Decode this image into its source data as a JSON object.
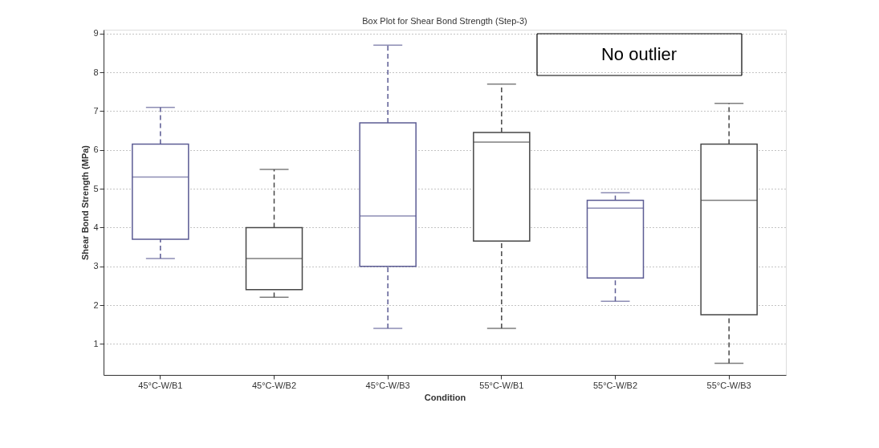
{
  "chart_data": {
    "type": "box",
    "title": "Box Plot for Shear Bond Strength (Step-3)",
    "xlabel": "Condition",
    "ylabel": "Shear Bond Strength (MPa)",
    "categories": [
      "45°C-W/B1",
      "45°C-W/B2",
      "45°C-W/B3",
      "55°C-W/B1",
      "55°C-W/B2",
      "55°C-W/B3"
    ],
    "colors": [
      "#5c5c94",
      "#474747",
      "#5c5c94",
      "#474747",
      "#5c5c94",
      "#474747"
    ],
    "boxes": [
      {
        "low": 3.2,
        "q1": 3.7,
        "median": 5.3,
        "q3": 6.15,
        "high": 7.1
      },
      {
        "low": 2.2,
        "q1": 2.4,
        "median": 3.2,
        "q3": 4.0,
        "high": 5.5
      },
      {
        "low": 1.4,
        "q1": 3.0,
        "median": 4.3,
        "q3": 6.7,
        "high": 8.7
      },
      {
        "low": 1.4,
        "q1": 3.65,
        "median": 6.2,
        "q3": 6.45,
        "high": 7.7
      },
      {
        "low": 2.1,
        "q1": 2.7,
        "median": 4.5,
        "q3": 4.7,
        "high": 4.9
      },
      {
        "low": 0.5,
        "q1": 1.75,
        "median": 4.7,
        "q3": 6.15,
        "high": 7.2
      }
    ],
    "ylim": [
      0.2,
      9.1
    ],
    "yticks": [
      1,
      2,
      3,
      4,
      5,
      6,
      7,
      8,
      9
    ],
    "grid": "y",
    "line_style": "dashed",
    "annotations": [
      "No outlier"
    ]
  }
}
